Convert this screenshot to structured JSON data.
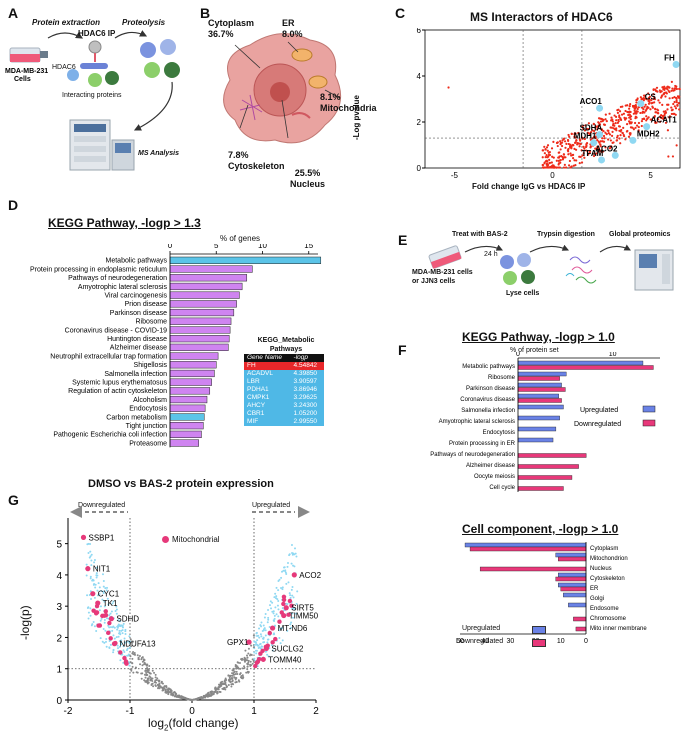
{
  "panels": {
    "A": {
      "label": "A",
      "step1": "Protein extraction",
      "step2": "Proteolysis",
      "ip": "HDAC6 IP",
      "cells": "MDA-MB-231\nCells",
      "hdac6": "HDAC6",
      "interacting": "Interacting proteins",
      "analysis": "MS Analysis"
    },
    "B": {
      "label": "B",
      "cytoplasm": "Cytoplasm\n36.7%",
      "er": "ER\n8.0%",
      "mito": "8.1%\nMitochondria",
      "cytoskeleton": "7.8%\nCytoskeleton",
      "nucleus": "25.5%\nNucleus"
    },
    "C": {
      "label": "C",
      "title": "MS Interactors of HDAC6",
      "ylabel": "-Log pvalue",
      "xlabel": "Fold change IgG vs HDAC6 IP",
      "highlights": [
        "FH",
        "CS",
        "ACO1",
        "ACAT1",
        "SDHA",
        "MDH1",
        "MDH2",
        "ACO2",
        "TFAM"
      ]
    },
    "D": {
      "label": "D",
      "title": "KEGG Pathway, -logp > 1.3",
      "axis_title": "% of genes",
      "table_title": "KEGG_Metabolic\nPathways",
      "table_header": [
        "Gene Name",
        "-logp"
      ],
      "table_rows": [
        [
          "FH",
          "4.54842"
        ],
        [
          "ACADVL",
          "4.39850"
        ],
        [
          "LBR",
          "3.90597"
        ],
        [
          "PDHA1",
          "3.86946"
        ],
        [
          "CMPK1",
          "3.29625"
        ],
        [
          "AHCY",
          "3.24300"
        ],
        [
          "CBR1",
          "1.05200"
        ],
        [
          "MIF",
          "2.99550"
        ]
      ]
    },
    "E": {
      "label": "E",
      "step1": "Treat with BAS-2",
      "time": "24 h",
      "step2": "Trypsin digestion",
      "step3": "Global proteomics",
      "cells": "MDA-MB-231 cells\nor JJN3 cells",
      "lyse": "Lyse cells"
    },
    "F": {
      "label": "F",
      "title1": "KEGG Pathway, -logp > 1.0",
      "axis_title1": "% of protein set",
      "title2": "Cell component, -logp > 1.0",
      "legend_up": "Upregulated",
      "legend_down": "Downregulated"
    },
    "G": {
      "label": "G",
      "title": "DMSO vs BAS-2 protein expression",
      "down": "Downregulated",
      "up": "Upregulated",
      "legend": "Mitochondrial",
      "ylabel": "-log(p)",
      "xlabel": "log2(fold change)",
      "genes": [
        "SSBP1",
        "NIT1",
        "CYC1",
        "TK1",
        "SDHD",
        "NDUFA13",
        "ACO2",
        "SIRT5",
        "TIMM50",
        "MT-ND6",
        "GPX1",
        "SUCLG2",
        "TOMM40"
      ]
    }
  },
  "colors": {
    "purple": "#cf84f0",
    "cyan": "#5bc4e8",
    "blue": "#6a82e6",
    "pink": "#e8387a",
    "red_dot": "#ee2b1a",
    "light_blue_dot": "#8fd8f2",
    "gray_dot": "#888888",
    "mito_pink": "#e6397a",
    "table_red": "#e8272a",
    "table_cyan": "#4fb8e6"
  },
  "chart_data": [
    {
      "type": "bar",
      "title": "KEGG Pathway, -logp > 1.3",
      "xlabel": "% of genes",
      "xlim": [
        0,
        16
      ],
      "ticks": [
        0,
        5,
        10,
        15
      ],
      "categories": [
        "Metabolic pathways",
        "Protein processing in endoplasmic reticulum",
        "Pathways of neurodegeneration",
        "Amyotrophic lateral sclerosis",
        "Viral carcinogenesis",
        "Prion disease",
        "Parkinson disease",
        "Ribosome",
        "Coronavirus disease - COVID-19",
        "Huntington disease",
        "Alzheimer disease",
        "Neutrophil extracellular trap formation",
        "Shigellosis",
        "Salmonella infection",
        "Systemic lupus erythematosus",
        "Regulation of actin cytoskeleton",
        "Alcoholism",
        "Endocytosis",
        "Carbon metabolism",
        "Tight junction",
        "Pathogenic Escherichia coli infection",
        "Proteasome"
      ],
      "values": [
        16.3,
        8.9,
        8.3,
        7.8,
        7.5,
        7.2,
        6.9,
        6.6,
        6.5,
        6.4,
        6.3,
        5.2,
        5.0,
        4.8,
        4.5,
        4.3,
        4.0,
        3.8,
        3.7,
        3.6,
        3.4,
        3.1
      ],
      "highlight": [
        0,
        18
      ]
    },
    {
      "type": "bar",
      "title": "KEGG Pathway, -logp > 1.0",
      "xlabel": "% of protein set",
      "xlim": [
        0,
        15
      ],
      "ticks": [
        0,
        10
      ],
      "categories": [
        "Metabolic pathways",
        "Ribosome",
        "Parkinson disease",
        "Coronavirus disease",
        "Salmonella infection",
        "Amyotrophic lateral sclerosis",
        "Endocytosis",
        "Protein processing in ER",
        "Pathways of neurodegeneration",
        "Alzheimer disease",
        "Oocyte meiosis",
        "Cell cycle"
      ],
      "series": [
        {
          "name": "Upregulated",
          "values": [
            13.2,
            5.1,
            4.6,
            4.3,
            4.8,
            4.4,
            4.0,
            3.7,
            0,
            0,
            0,
            0
          ]
        },
        {
          "name": "Downregulated",
          "values": [
            14.3,
            4.4,
            5.0,
            4.6,
            0,
            0,
            0,
            0,
            7.2,
            6.4,
            5.7,
            4.8
          ]
        }
      ]
    },
    {
      "type": "bar",
      "title": "Cell component, -logp > 1.0",
      "xlim": [
        0,
        50
      ],
      "ticks": [
        50,
        40,
        30,
        20,
        10,
        0
      ],
      "categories": [
        "Cytoplasm",
        "Mitochondrion",
        "Nucleus",
        "Cytoskeleton",
        "ER",
        "Golgi",
        "Endosome",
        "Chromosome",
        "Mito inner membrane"
      ],
      "series": [
        {
          "name": "Upregulated",
          "values": [
            48,
            12,
            0,
            11,
            11,
            9,
            7,
            0,
            0
          ]
        },
        {
          "name": "Downregulated",
          "values": [
            46,
            11,
            42,
            12,
            10,
            0,
            0,
            5,
            4
          ]
        }
      ]
    },
    {
      "type": "scatter",
      "title": "MS Interactors of HDAC6",
      "xlabel": "Fold change IgG vs HDAC6 IP",
      "ylabel": "-Log pvalue",
      "xlim": [
        -6.5,
        6.5
      ],
      "ylim": [
        0,
        6
      ],
      "xticks": [
        -5,
        0,
        5
      ],
      "yticks": [
        0,
        2,
        4,
        6
      ],
      "labeled_points": [
        {
          "label": "FH",
          "x": 6.3,
          "y": 4.5
        },
        {
          "label": "CS",
          "x": 4.5,
          "y": 2.8
        },
        {
          "label": "ACO1",
          "x": 2.4,
          "y": 2.6
        },
        {
          "label": "ACAT1",
          "x": 4.8,
          "y": 1.8
        },
        {
          "label": "SDHA",
          "x": 2.4,
          "y": 1.45
        },
        {
          "label": "MDH1",
          "x": 2.1,
          "y": 1.1
        },
        {
          "label": "MDH2",
          "x": 4.1,
          "y": 1.2
        },
        {
          "label": "ACO2",
          "x": 3.2,
          "y": 0.55
        },
        {
          "label": "TFAM",
          "x": 2.5,
          "y": 0.35
        }
      ]
    },
    {
      "type": "scatter",
      "title": "DMSO vs BAS-2 protein expression",
      "xlabel": "log2(fold change)",
      "ylabel": "-log(p)",
      "xlim": [
        -2,
        2
      ],
      "ylim": [
        0,
        5.5
      ],
      "xticks": [
        -2,
        -1,
        0,
        1,
        2
      ],
      "yticks": [
        0,
        1,
        2,
        3,
        4,
        5
      ],
      "labeled_points": [
        {
          "label": "SSBP1",
          "x": -1.75,
          "y": 5.2
        },
        {
          "label": "NIT1",
          "x": -1.68,
          "y": 4.2
        },
        {
          "label": "CYC1",
          "x": -1.6,
          "y": 3.4
        },
        {
          "label": "TK1",
          "x": -1.52,
          "y": 3.1
        },
        {
          "label": "SDHD",
          "x": -1.3,
          "y": 2.6
        },
        {
          "label": "NDUFA13",
          "x": -1.25,
          "y": 1.8
        },
        {
          "label": "ACO2",
          "x": 1.65,
          "y": 4.0
        },
        {
          "label": "SIRT5",
          "x": 1.52,
          "y": 2.95
        },
        {
          "label": "TIMM50",
          "x": 1.48,
          "y": 2.7
        },
        {
          "label": "MT-ND6",
          "x": 1.3,
          "y": 2.3
        },
        {
          "label": "GPX1",
          "x": 0.92,
          "y": 1.85
        },
        {
          "label": "SUCLG2",
          "x": 1.2,
          "y": 1.65
        },
        {
          "label": "TOMM40",
          "x": 1.15,
          "y": 1.3
        }
      ]
    }
  ]
}
